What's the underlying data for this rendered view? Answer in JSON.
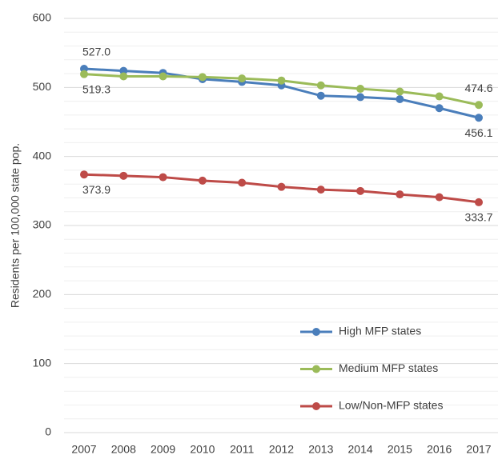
{
  "chart_data": {
    "type": "line",
    "y_label": "Residents per 100,000 state pop.",
    "x": [
      "2007",
      "2008",
      "2009",
      "2010",
      "2011",
      "2012",
      "2013",
      "2014",
      "2015",
      "2016",
      "2017"
    ],
    "series": [
      {
        "name": "High MFP states",
        "color": "#4a7ebb",
        "values": [
          527.0,
          524,
          521,
          512,
          508,
          503,
          488,
          486,
          483,
          470,
          456.1
        ],
        "value_labels": [
          "527.0",
          null,
          null,
          null,
          null,
          null,
          null,
          null,
          null,
          null,
          "456.1"
        ]
      },
      {
        "name": "Medium MFP states",
        "color": "#9bbb59",
        "values": [
          519.3,
          516,
          516,
          515,
          513,
          510,
          503,
          498,
          494,
          487,
          474.6
        ],
        "value_labels": [
          "519.3",
          null,
          null,
          null,
          null,
          null,
          null,
          null,
          null,
          null,
          "474.6"
        ]
      },
      {
        "name": "Low/Non-MFP states",
        "color": "#be4b48",
        "values": [
          373.9,
          372,
          370,
          365,
          362,
          356,
          352,
          350,
          345,
          341,
          333.7
        ],
        "value_labels": [
          "373.9",
          null,
          null,
          null,
          null,
          null,
          null,
          null,
          null,
          null,
          "333.7"
        ]
      }
    ],
    "ylim": [
      0,
      600
    ],
    "yticks": [
      0,
      100,
      200,
      300,
      400,
      500,
      600
    ],
    "y_minor_ticks": [
      20,
      40,
      60,
      80,
      120,
      140,
      160,
      180,
      220,
      240,
      260,
      280,
      320,
      340,
      360,
      380,
      420,
      440,
      460,
      480,
      520,
      540,
      560,
      580
    ],
    "grid": true,
    "legend": "lower right"
  }
}
